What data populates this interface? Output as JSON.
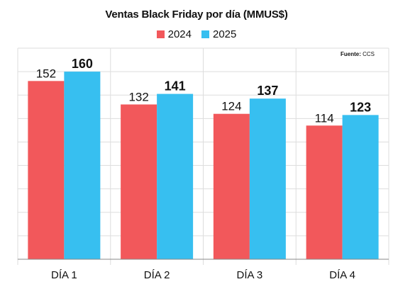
{
  "chart_data": {
    "type": "bar",
    "title": "Ventas Black Friday por día (MMUS$)",
    "categories": [
      "DÍA 1",
      "DÍA 2",
      "DÍA 3",
      "DÍA 4"
    ],
    "series": [
      {
        "name": "2024",
        "values": [
          152,
          132,
          124,
          114
        ],
        "color": "#f2585b"
      },
      {
        "name": "2025",
        "values": [
          160,
          141,
          137,
          123
        ],
        "color": "#37bff0"
      }
    ],
    "xlabel": "",
    "ylabel": "",
    "ylim": [
      0,
      180
    ],
    "grid": true,
    "legend_position": "top-center",
    "data_labels": true,
    "source_label": "Fuente:",
    "source_value": "CCS"
  }
}
